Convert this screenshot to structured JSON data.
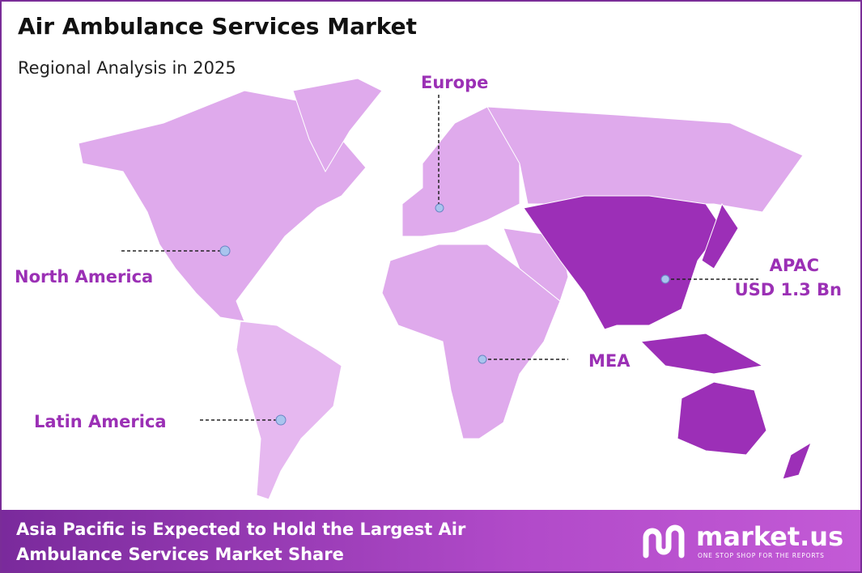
{
  "header": {
    "title": "Air Ambulance Services Market",
    "subtitle": "Regional Analysis in 2025"
  },
  "regions": [
    {
      "label": "Europe"
    },
    {
      "label": "North America"
    },
    {
      "label": "APAC",
      "value_label": "USD 1.3 Bn"
    },
    {
      "label": "MEA"
    },
    {
      "label": "Latin America"
    }
  ],
  "footer": {
    "text": [
      "Asia Pacific is Expected to Hold the Largest Air",
      "Ambulance Services Market Share"
    ],
    "brand": "market.us",
    "tagline": "ONE STOP SHOP FOR THE REPORTS"
  }
}
